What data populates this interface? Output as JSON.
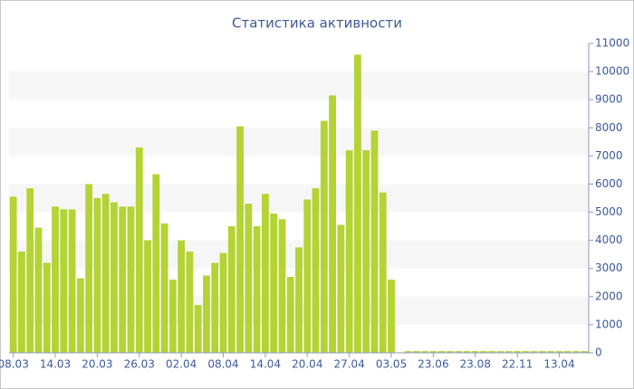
{
  "chart_data": {
    "type": "bar",
    "title": "Статистика активности",
    "categories": [
      "08.03",
      null,
      null,
      null,
      null,
      "14.03",
      null,
      null,
      null,
      null,
      "20.03",
      null,
      null,
      null,
      null,
      "26.03",
      null,
      null,
      null,
      null,
      "02.04",
      null,
      null,
      null,
      null,
      "08.04",
      null,
      null,
      null,
      null,
      "14.04",
      null,
      null,
      null,
      null,
      "20.04",
      null,
      null,
      null,
      null,
      "27.04",
      null,
      null,
      null,
      null,
      "03.05",
      null,
      null,
      null,
      null,
      "23.06",
      null,
      null,
      null,
      null,
      "23.08",
      null,
      null,
      null,
      null,
      "22.11",
      null,
      null,
      null,
      null,
      "13.04",
      null,
      null,
      null
    ],
    "values": [
      5550,
      3600,
      5850,
      4450,
      3200,
      5200,
      5100,
      5100,
      2650,
      6000,
      5500,
      5650,
      5350,
      5200,
      5200,
      7300,
      4000,
      6350,
      4600,
      2600,
      4000,
      3600,
      1700,
      2750,
      3200,
      3550,
      4500,
      8050,
      5300,
      4500,
      5650,
      4950,
      4750,
      2700,
      3750,
      5450,
      5850,
      8250,
      9150,
      4550,
      7200,
      10600,
      7200,
      7900,
      5700,
      2600,
      0,
      60,
      60,
      60,
      60,
      60,
      60,
      60,
      60,
      60,
      60,
      60,
      60,
      60,
      60,
      60,
      60,
      60,
      60,
      60,
      60,
      60,
      60
    ],
    "color": "#b4d334",
    "ylim": [
      0,
      11000
    ],
    "yticks": [
      0,
      1000,
      2000,
      3000,
      4000,
      5000,
      6000,
      7000,
      8000,
      9000,
      10000,
      11000
    ],
    "grid": "bands",
    "y_axis_side": "right"
  }
}
